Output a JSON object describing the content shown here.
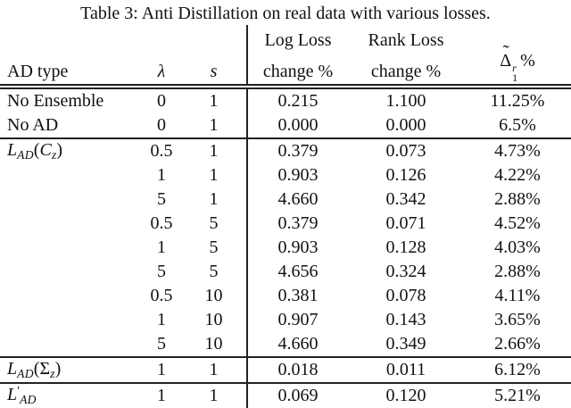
{
  "colors": {
    "text": "#111111",
    "background": "#ffffff",
    "rule": "#222222"
  },
  "caption": {
    "text": "Table 3: Anti Distillation on real data with various losses."
  },
  "table": {
    "header": {
      "ad_type": "AD type",
      "lambda": "λ",
      "s": "s",
      "log_loss_line1": "Log Loss",
      "log_loss_line2": "change %",
      "rank_loss_line1": "Rank Loss",
      "rank_loss_line2": "change %",
      "delta": {
        "tilde": "˜",
        "base": "Δ",
        "sup": "r",
        "sub": "1",
        "suffix": "%"
      }
    },
    "rows": [
      {
        "ad_type_parts": [
          {
            "t": "n",
            "v": "No Ensemble"
          }
        ],
        "lambda": "0",
        "s": "1",
        "log_loss": "0.215",
        "rank_loss": "1.100",
        "delta": "11.25%",
        "rule_below": false
      },
      {
        "ad_type_parts": [
          {
            "t": "n",
            "v": "No AD"
          }
        ],
        "lambda": "0",
        "s": "1",
        "log_loss": "0.000",
        "rank_loss": "0.000",
        "delta": "6.5%",
        "rule_below": true
      },
      {
        "ad_type_parts": [
          {
            "t": "i",
            "v": "L"
          },
          {
            "t": "sub",
            "v": "AD"
          },
          {
            "t": "n",
            "v": "("
          },
          {
            "t": "i",
            "v": "C"
          },
          {
            "t": "sub",
            "v": "z"
          },
          {
            "t": "n",
            "v": ")"
          }
        ],
        "lambda": "0.5",
        "s": "1",
        "log_loss": "0.379",
        "rank_loss": "0.073",
        "delta": "4.73%",
        "rule_below": false
      },
      {
        "ad_type_parts": [],
        "lambda": "1",
        "s": "1",
        "log_loss": "0.903",
        "rank_loss": "0.126",
        "delta": "4.22%",
        "rule_below": false
      },
      {
        "ad_type_parts": [],
        "lambda": "5",
        "s": "1",
        "log_loss": "4.660",
        "rank_loss": "0.342",
        "delta": "2.88%",
        "rule_below": false
      },
      {
        "ad_type_parts": [],
        "lambda": "0.5",
        "s": "5",
        "log_loss": "0.379",
        "rank_loss": "0.071",
        "delta": "4.52%",
        "rule_below": false
      },
      {
        "ad_type_parts": [],
        "lambda": "1",
        "s": "5",
        "log_loss": "0.903",
        "rank_loss": "0.128",
        "delta": "4.03%",
        "rule_below": false
      },
      {
        "ad_type_parts": [],
        "lambda": "5",
        "s": "5",
        "log_loss": "4.656",
        "rank_loss": "0.324",
        "delta": "2.88%",
        "rule_below": false
      },
      {
        "ad_type_parts": [],
        "lambda": "0.5",
        "s": "10",
        "log_loss": "0.381",
        "rank_loss": "0.078",
        "delta": "4.11%",
        "rule_below": false
      },
      {
        "ad_type_parts": [],
        "lambda": "1",
        "s": "10",
        "log_loss": "0.907",
        "rank_loss": "0.143",
        "delta": "3.65%",
        "rule_below": false
      },
      {
        "ad_type_parts": [],
        "lambda": "5",
        "s": "10",
        "log_loss": "4.660",
        "rank_loss": "0.349",
        "delta": "2.66%",
        "rule_below": true
      },
      {
        "ad_type_parts": [
          {
            "t": "i",
            "v": "L"
          },
          {
            "t": "sub",
            "v": "AD"
          },
          {
            "t": "n",
            "v": "(Σ"
          },
          {
            "t": "sub",
            "v": "z"
          },
          {
            "t": "n",
            "v": ")"
          }
        ],
        "lambda": "1",
        "s": "1",
        "log_loss": "0.018",
        "rank_loss": "0.011",
        "delta": "6.12%",
        "rule_below": true
      },
      {
        "ad_type_parts": [
          {
            "t": "i",
            "v": "L"
          },
          {
            "t": "sup",
            "v": "′"
          },
          {
            "t": "sub",
            "v": "AD"
          }
        ],
        "lambda": "1",
        "s": "1",
        "log_loss": "0.069",
        "rank_loss": "0.120",
        "delta": "5.21%",
        "rule_below": false
      }
    ]
  }
}
